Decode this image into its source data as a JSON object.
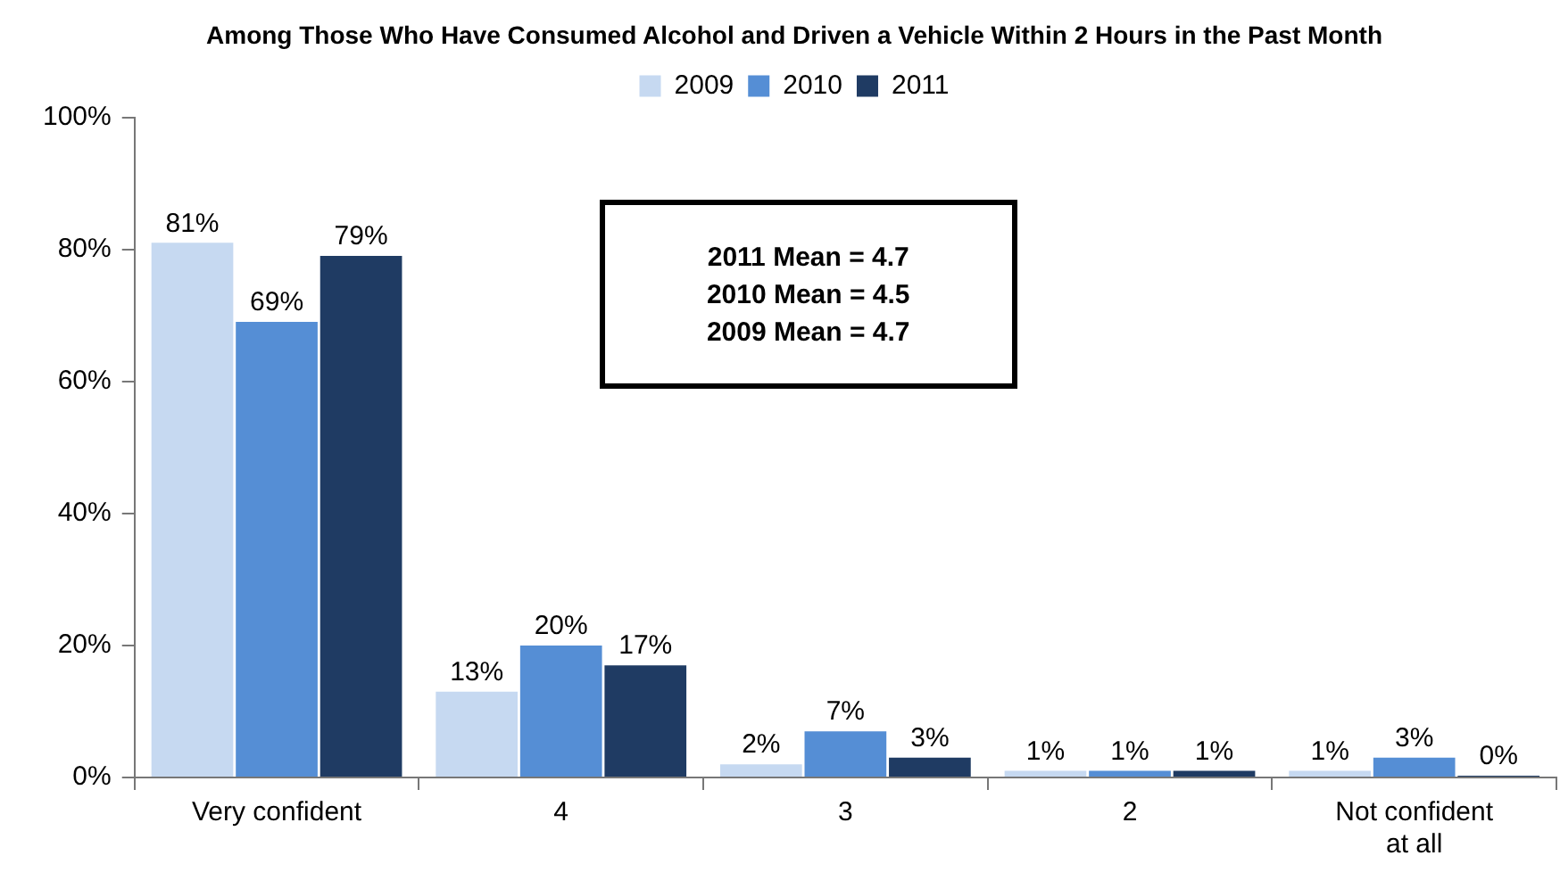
{
  "chart_data": {
    "type": "bar",
    "title": "Among Those Who Have Consumed Alcohol and Driven a Vehicle Within 2 Hours in the Past Month",
    "categories": [
      "Very confident",
      "4",
      "3",
      "2",
      "Not confident at all"
    ],
    "series": [
      {
        "name": "2009",
        "color": "#c6d9f1",
        "values": [
          81,
          13,
          2,
          1,
          1
        ],
        "value_labels": [
          "81%",
          "13%",
          "2%",
          "1%",
          "1%"
        ]
      },
      {
        "name": "2010",
        "color": "#558ed5",
        "values": [
          69,
          20,
          7,
          1,
          3
        ],
        "value_labels": [
          "69%",
          "20%",
          "7%",
          "1%",
          "3%"
        ]
      },
      {
        "name": "2011",
        "color": "#1f3b63",
        "values": [
          79,
          17,
          3,
          1,
          0
        ],
        "value_labels": [
          "79%",
          "17%",
          "3%",
          "1%",
          "0%"
        ]
      }
    ],
    "ylim": [
      0,
      100
    ],
    "yticks": [
      {
        "value": 0,
        "label": "0%"
      },
      {
        "value": 20,
        "label": "20%"
      },
      {
        "value": 40,
        "label": "40%"
      },
      {
        "value": 60,
        "label": "60%"
      },
      {
        "value": 80,
        "label": "80%"
      },
      {
        "value": 100,
        "label": "100%"
      }
    ],
    "annotations": [
      "2011 Mean = 4.7",
      "2010 Mean = 4.5",
      "2009 Mean = 4.7"
    ],
    "grid": false,
    "legend": "top"
  }
}
